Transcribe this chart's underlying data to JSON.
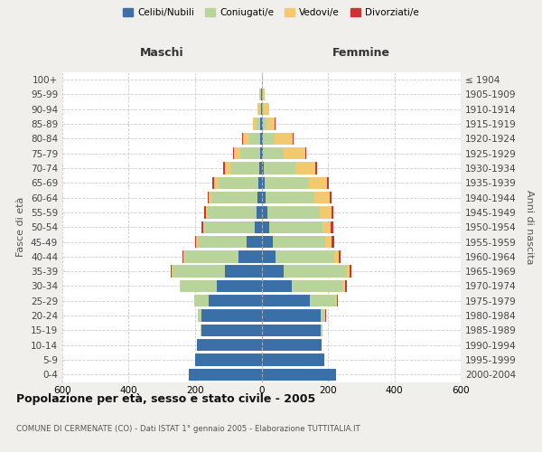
{
  "age_groups": [
    "0-4",
    "5-9",
    "10-14",
    "15-19",
    "20-24",
    "25-29",
    "30-34",
    "35-39",
    "40-44",
    "45-49",
    "50-54",
    "55-59",
    "60-64",
    "65-69",
    "70-74",
    "75-79",
    "80-84",
    "85-89",
    "90-94",
    "95-99",
    "100+"
  ],
  "birth_years": [
    "2000-2004",
    "1995-1999",
    "1990-1994",
    "1985-1989",
    "1980-1984",
    "1975-1979",
    "1970-1974",
    "1965-1969",
    "1960-1964",
    "1955-1959",
    "1950-1954",
    "1945-1949",
    "1940-1944",
    "1935-1939",
    "1930-1934",
    "1925-1929",
    "1920-1924",
    "1915-1919",
    "1910-1914",
    "1905-1909",
    "≤ 1904"
  ],
  "male": {
    "celibe": [
      220,
      200,
      195,
      180,
      180,
      160,
      135,
      110,
      70,
      45,
      20,
      15,
      12,
      10,
      8,
      5,
      5,
      3,
      2,
      2,
      0
    ],
    "coniugato": [
      0,
      0,
      0,
      3,
      12,
      42,
      108,
      158,
      163,
      148,
      152,
      148,
      138,
      118,
      82,
      58,
      32,
      12,
      5,
      2,
      0
    ],
    "vedovo": [
      0,
      0,
      0,
      0,
      0,
      0,
      2,
      2,
      2,
      3,
      4,
      5,
      8,
      15,
      20,
      20,
      20,
      10,
      5,
      2,
      0
    ],
    "divorziato": [
      0,
      0,
      0,
      0,
      0,
      1,
      2,
      3,
      4,
      5,
      5,
      5,
      5,
      5,
      5,
      3,
      2,
      1,
      0,
      0,
      0
    ]
  },
  "female": {
    "nubile": [
      225,
      188,
      182,
      178,
      178,
      145,
      92,
      68,
      42,
      35,
      22,
      18,
      12,
      10,
      8,
      5,
      5,
      3,
      2,
      2,
      0
    ],
    "coniugata": [
      0,
      0,
      0,
      5,
      15,
      78,
      152,
      188,
      178,
      158,
      162,
      158,
      148,
      132,
      95,
      62,
      35,
      12,
      5,
      2,
      0
    ],
    "vedova": [
      0,
      0,
      0,
      0,
      0,
      5,
      8,
      10,
      12,
      18,
      25,
      35,
      45,
      55,
      60,
      65,
      55,
      25,
      15,
      5,
      1
    ],
    "divorziata": [
      0,
      0,
      0,
      0,
      1,
      2,
      4,
      5,
      6,
      7,
      7,
      6,
      6,
      5,
      5,
      3,
      2,
      1,
      0,
      0,
      0
    ]
  },
  "colors": {
    "celibe": "#3a6fa8",
    "coniugato": "#b8d49a",
    "vedovo": "#f2c96e",
    "divorziato": "#cc3333"
  },
  "legend_labels": [
    "Celibi/Nubili",
    "Coniugati/e",
    "Vedovi/e",
    "Divorziati/e"
  ],
  "xlim": 600,
  "title": "Popolazione per età, sesso e stato civile - 2005",
  "subtitle": "COMUNE DI CERMENATE (CO) - Dati ISTAT 1° gennaio 2005 - Elaborazione TUTTITALIA.IT",
  "ylabel_left": "Fasce di età",
  "ylabel_right": "Anni di nascita",
  "xlabel_left": "Maschi",
  "xlabel_right": "Femmine",
  "bg_color": "#f0efeb",
  "plot_bg_color": "#ffffff"
}
